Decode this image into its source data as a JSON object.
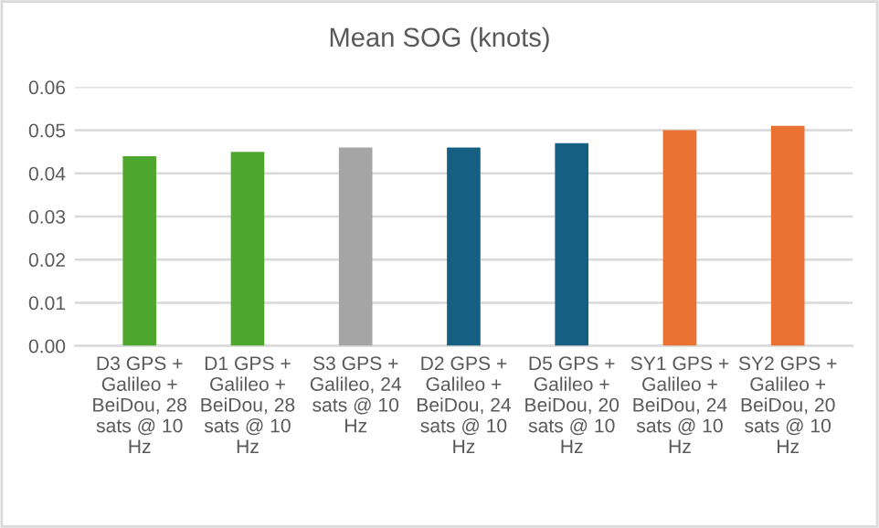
{
  "chart_data": {
    "type": "bar",
    "title": "Mean SOG (knots)",
    "categories": [
      "D3 GPS + Galileo + BeiDou, 28 sats @ 10 Hz",
      "D1 GPS + Galileo + BeiDou, 28 sats @ 10 Hz",
      "S3 GPS + Galileo, 24 sats @ 10 Hz",
      "D2 GPS + Galileo + BeiDou, 24 sats @ 10 Hz",
      "D5 GPS + Galileo + BeiDou, 20 sats @ 10 Hz",
      "SY1 GPS + Galileo + BeiDou, 24 sats @ 10 Hz",
      "SY2 GPS + Galileo + BeiDou, 20 sats @ 10 Hz"
    ],
    "values": [
      0.044,
      0.045,
      0.046,
      0.046,
      0.047,
      0.05,
      0.051
    ],
    "colors": [
      "#4ea72e",
      "#4ea72e",
      "#a5a5a5",
      "#156082",
      "#156082",
      "#e97132",
      "#e97132"
    ],
    "ylim": [
      0,
      0.06
    ],
    "yticks": [
      {
        "value": 0,
        "label": "0.00"
      },
      {
        "value": 0.01,
        "label": "0.01"
      },
      {
        "value": 0.02,
        "label": "0.02"
      },
      {
        "value": 0.03,
        "label": "0.03"
      },
      {
        "value": 0.04,
        "label": "0.04"
      },
      {
        "value": 0.05,
        "label": "0.05"
      },
      {
        "value": 0.06,
        "label": "0.06"
      }
    ],
    "grid": "y"
  }
}
